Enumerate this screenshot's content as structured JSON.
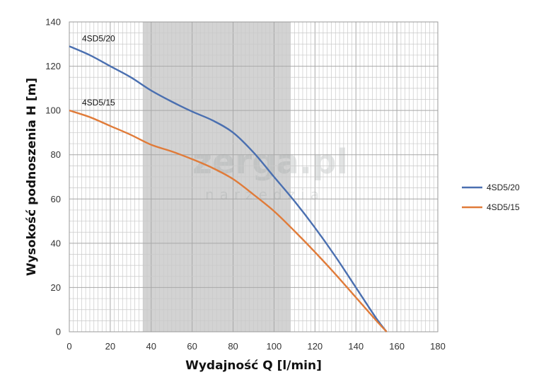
{
  "chart_data": {
    "type": "line",
    "title": "",
    "xlabel": "Wydajność Q [l/min]",
    "ylabel": "Wysokość podnoszenia H [m]",
    "xlim": [
      0,
      180
    ],
    "ylim": [
      0,
      140
    ],
    "x_ticks": [
      0,
      20,
      40,
      60,
      80,
      100,
      120,
      140,
      160,
      180
    ],
    "y_ticks": [
      0,
      20,
      40,
      60,
      80,
      100,
      120,
      140
    ],
    "grid": true,
    "legend_position": "right",
    "highlight_band": {
      "x_from": 36,
      "x_to": 108,
      "color": "#d3d3d3"
    },
    "watermark": {
      "main": "zerga.pl",
      "sub": "narzedzia"
    },
    "series": [
      {
        "name": "4SD5/20",
        "color": "#4a6fb0",
        "points": [
          [
            0,
            129
          ],
          [
            10,
            125
          ],
          [
            20,
            120
          ],
          [
            30,
            115
          ],
          [
            40,
            109
          ],
          [
            50,
            104
          ],
          [
            60,
            99.5
          ],
          [
            70,
            95.5
          ],
          [
            80,
            90
          ],
          [
            90,
            81
          ],
          [
            100,
            70
          ],
          [
            110,
            59
          ],
          [
            120,
            47
          ],
          [
            130,
            34
          ],
          [
            140,
            20
          ],
          [
            150,
            6
          ],
          [
            155,
            0
          ]
        ]
      },
      {
        "name": "4SD5/15",
        "color": "#e07b39",
        "points": [
          [
            0,
            100
          ],
          [
            10,
            97
          ],
          [
            20,
            93
          ],
          [
            30,
            89
          ],
          [
            40,
            84.5
          ],
          [
            50,
            81.5
          ],
          [
            60,
            78
          ],
          [
            70,
            74
          ],
          [
            80,
            69
          ],
          [
            90,
            62
          ],
          [
            100,
            54.5
          ],
          [
            110,
            45.5
          ],
          [
            120,
            36
          ],
          [
            130,
            26
          ],
          [
            140,
            15.5
          ],
          [
            150,
            5
          ],
          [
            155,
            0
          ]
        ]
      }
    ]
  }
}
